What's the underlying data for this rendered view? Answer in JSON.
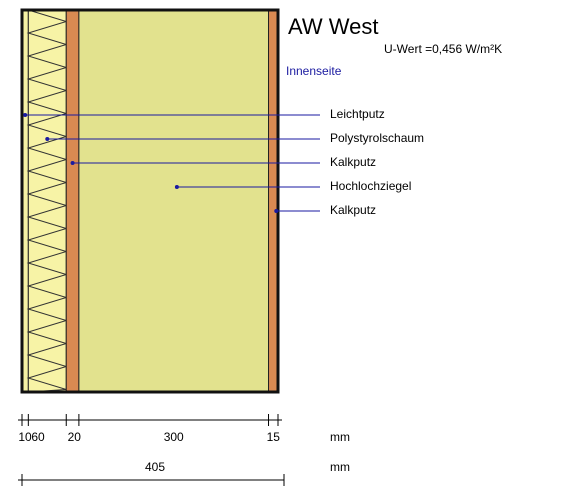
{
  "title": "AW West",
  "u_value": "U-Wert =0,456 W/m²K",
  "inside_label": "Innenseite",
  "layers": [
    {
      "name": "Leichtputz",
      "thickness": 10,
      "color": "#f6f2a4"
    },
    {
      "name": "Polystyrolschaum",
      "thickness": 60,
      "color": "#f7f3a6"
    },
    {
      "name": "Kalkputz",
      "thickness": 20,
      "color": "#d98a52"
    },
    {
      "name": "Hochlochziegel",
      "thickness": 300,
      "color": "#e2e28e"
    },
    {
      "name": "Kalkputz",
      "thickness": 15,
      "color": "#d98a52"
    }
  ],
  "dimension_unit": "mm",
  "total": 405,
  "total_unit": "mm"
}
